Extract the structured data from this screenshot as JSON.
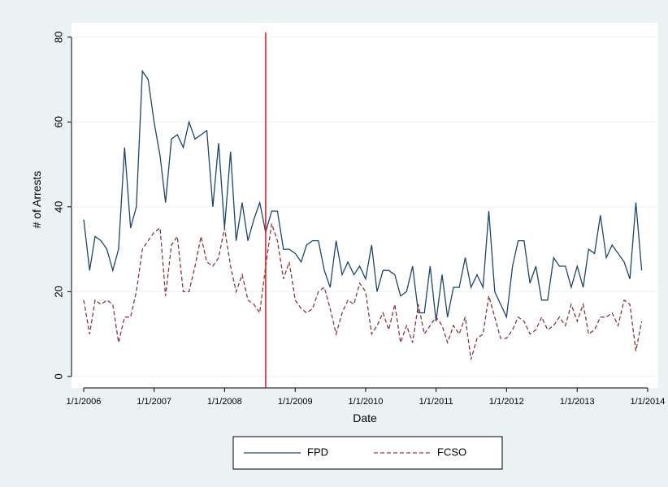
{
  "chart_data": {
    "type": "line",
    "xlabel": "Date",
    "ylabel": "# of Arrests",
    "x": [
      "2006-01-01",
      "2006-02-01",
      "2006-03-01",
      "2006-04-01",
      "2006-05-01",
      "2006-06-01",
      "2006-07-01",
      "2006-08-01",
      "2006-09-01",
      "2006-10-01",
      "2006-11-01",
      "2006-12-01",
      "2007-01-01",
      "2007-02-01",
      "2007-03-01",
      "2007-04-01",
      "2007-05-01",
      "2007-06-01",
      "2007-07-01",
      "2007-08-01",
      "2007-09-01",
      "2007-10-01",
      "2007-11-01",
      "2007-12-01",
      "2008-01-01",
      "2008-02-01",
      "2008-03-01",
      "2008-04-01",
      "2008-05-01",
      "2008-06-01",
      "2008-07-01",
      "2008-08-01",
      "2008-09-01",
      "2008-10-01",
      "2008-11-01",
      "2008-12-01",
      "2009-01-01",
      "2009-02-01",
      "2009-03-01",
      "2009-04-01",
      "2009-05-01",
      "2009-06-01",
      "2009-07-01",
      "2009-08-01",
      "2009-09-01",
      "2009-10-01",
      "2009-11-01",
      "2009-12-01",
      "2010-01-01",
      "2010-02-01",
      "2010-03-01",
      "2010-04-01",
      "2010-05-01",
      "2010-06-01",
      "2010-07-01",
      "2010-08-01",
      "2010-09-01",
      "2010-10-01",
      "2010-11-01",
      "2010-12-01",
      "2011-01-01",
      "2011-02-01",
      "2011-03-01",
      "2011-04-01",
      "2011-05-01",
      "2011-06-01",
      "2011-07-01",
      "2011-08-01",
      "2011-09-01",
      "2011-10-01",
      "2011-11-01",
      "2011-12-01",
      "2012-01-01",
      "2012-02-01",
      "2012-03-01",
      "2012-04-01",
      "2012-05-01",
      "2012-06-01",
      "2012-07-01",
      "2012-08-01",
      "2012-09-01",
      "2012-10-01",
      "2012-11-01",
      "2012-12-01",
      "2013-01-01",
      "2013-02-01",
      "2013-03-01",
      "2013-04-01",
      "2013-05-01",
      "2013-06-01",
      "2013-07-01",
      "2013-08-01",
      "2013-09-01",
      "2013-10-01",
      "2013-11-01",
      "2013-12-01"
    ],
    "series": [
      {
        "name": "FPD",
        "color": "#1a476f",
        "style": "solid",
        "values": [
          37,
          25,
          33,
          32,
          30,
          25,
          30,
          54,
          35,
          40,
          72,
          70,
          60,
          52,
          41,
          56,
          57,
          54,
          60,
          56,
          57,
          58,
          40,
          55,
          35,
          53,
          32,
          41,
          32,
          37,
          41,
          34,
          39,
          39,
          30,
          30,
          29,
          27,
          31,
          32,
          32,
          25,
          21,
          32,
          24,
          27,
          24,
          26,
          23,
          31,
          20,
          25,
          25,
          24,
          19,
          20,
          26,
          15,
          15,
          26,
          13,
          24,
          14,
          21,
          21,
          28,
          21,
          24,
          21,
          39,
          20,
          17,
          14,
          26,
          32,
          32,
          22,
          26,
          18,
          18,
          28,
          26,
          26,
          21,
          26,
          21,
          30,
          29,
          38,
          28,
          31,
          29,
          27,
          23,
          41,
          25
        ]
      },
      {
        "name": "FCSO",
        "color": "#90353b",
        "style": "dashed",
        "values": [
          18,
          10,
          18,
          17,
          18,
          17,
          8,
          14,
          14,
          20,
          30,
          32,
          34,
          35,
          19,
          31,
          33,
          20,
          20,
          26,
          33,
          27,
          26,
          28,
          35,
          26,
          20,
          24,
          18,
          17,
          15,
          26,
          36,
          32,
          23,
          27,
          18,
          16,
          15,
          16,
          20,
          21,
          16,
          10,
          15,
          18,
          17,
          22,
          20,
          10,
          12,
          15,
          11,
          17,
          8,
          12,
          8,
          17,
          10,
          12,
          14,
          12,
          8,
          12,
          10,
          14,
          4,
          9,
          10,
          19,
          14,
          9,
          9,
          11,
          14,
          13,
          10,
          11,
          14,
          11,
          12,
          14,
          12,
          17,
          13,
          17,
          10,
          11,
          14,
          14,
          15,
          12,
          18,
          17,
          6,
          13
        ]
      }
    ],
    "vline": {
      "x": "2008-08-01",
      "color": "#e8161b"
    },
    "xlim": [
      "2005-10-30",
      "2014-02-25"
    ],
    "xticks": [
      {
        "value": "2006-01-01",
        "label": "1/1/2006"
      },
      {
        "value": "2007-01-01",
        "label": "1/1/2007"
      },
      {
        "value": "2008-01-01",
        "label": "1/1/2008"
      },
      {
        "value": "2009-01-01",
        "label": "1/1/2009"
      },
      {
        "value": "2010-01-01",
        "label": "1/1/2010"
      },
      {
        "value": "2011-01-01",
        "label": "1/1/2011"
      },
      {
        "value": "2012-01-01",
        "label": "1/1/2012"
      },
      {
        "value": "2013-01-01",
        "label": "1/1/2013"
      },
      {
        "value": "2014-01-01",
        "label": "1/1/2014"
      }
    ],
    "ylim": [
      -2.7,
      83.4
    ],
    "yticks": [
      0,
      20,
      40,
      60,
      80
    ],
    "grid": true,
    "legend": "bottom"
  }
}
